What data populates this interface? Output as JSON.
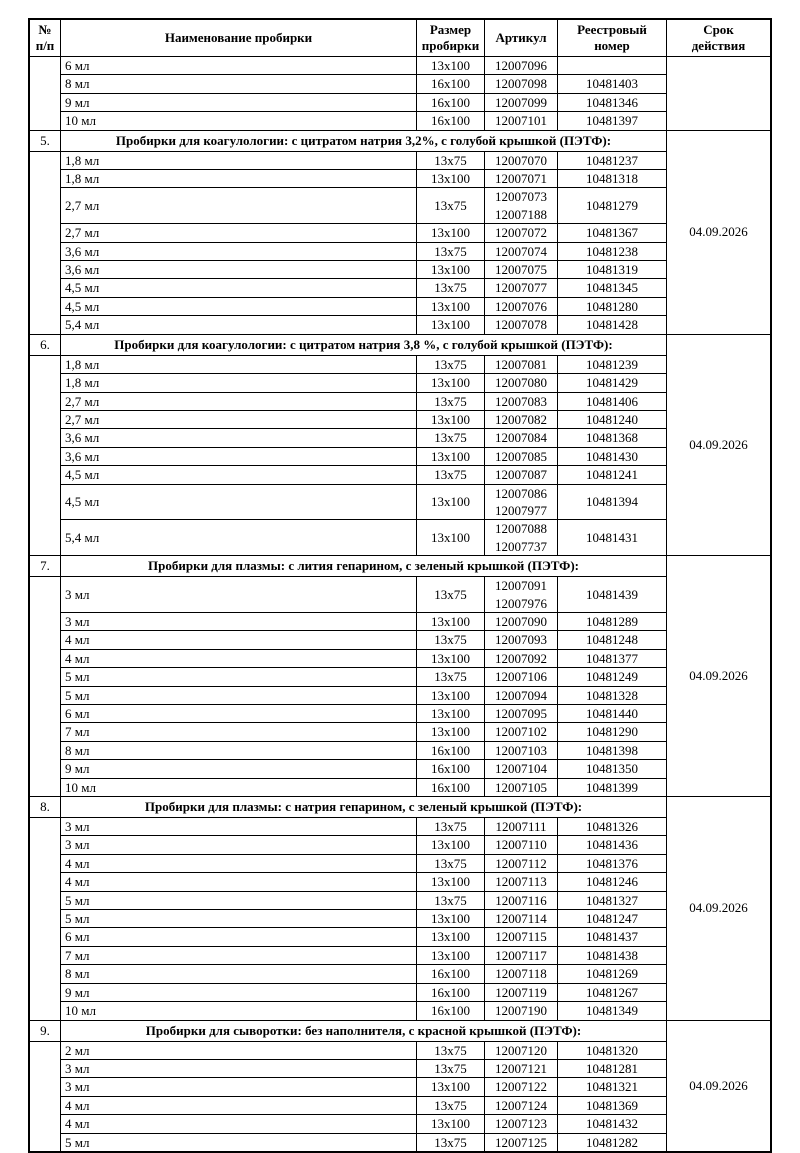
{
  "page": {
    "background": "#ffffff",
    "text_color": "#000000",
    "border_color": "#000000"
  },
  "table": {
    "header": {
      "num": "№\nп/п",
      "name": "Наименование пробирки",
      "size": "Размер\nпробирки",
      "article": "Артикул",
      "registry": "Реестровый\nномер",
      "validity": "Срок\nдействия"
    },
    "continuation": {
      "validity": "",
      "rows": [
        {
          "name": "6 мл",
          "size": "13x100",
          "article": "12007096",
          "registry": ""
        },
        {
          "name": "8 мл",
          "size": "16x100",
          "article": "12007098",
          "registry": "10481403"
        },
        {
          "name": "9 мл",
          "size": "16x100",
          "article": "12007099",
          "registry": "10481346"
        },
        {
          "name": "10 мл",
          "size": "16x100",
          "article": "12007101",
          "registry": "10481397"
        }
      ]
    },
    "sections": [
      {
        "number": "5.",
        "title": "Пробирки для коагулологии: с цитратом натрия 3,2%, с голубой крышкой (ПЭТФ):",
        "validity": "04.09.2026",
        "rows": [
          {
            "name": "1,8 мл",
            "size": "13x75",
            "article": "12007070",
            "registry": "10481237"
          },
          {
            "name": "1,8 мл",
            "size": "13x100",
            "article": "12007071",
            "registry": "10481318"
          },
          {
            "name": "2,7 мл",
            "size": "13x75",
            "article": "12007073\n12007188",
            "registry": "10481279"
          },
          {
            "name": "2,7 мл",
            "size": "13x100",
            "article": "12007072",
            "registry": "10481367"
          },
          {
            "name": "3,6 мл",
            "size": "13x75",
            "article": "12007074",
            "registry": "10481238"
          },
          {
            "name": "3,6 мл",
            "size": "13x100",
            "article": "12007075",
            "registry": "10481319"
          },
          {
            "name": "4,5 мл",
            "size": "13x75",
            "article": "12007077",
            "registry": "10481345"
          },
          {
            "name": "4,5 мл",
            "size": "13x100",
            "article": "12007076",
            "registry": "10481280"
          },
          {
            "name": "5,4 мл",
            "size": "13x100",
            "article": "12007078",
            "registry": "10481428"
          }
        ]
      },
      {
        "number": "6.",
        "title": "Пробирки для коагулологии: с цитратом натрия 3,8 %, с голубой крышкой (ПЭТФ):",
        "validity": "04.09.2026",
        "rows": [
          {
            "name": "1,8 мл",
            "size": "13x75",
            "article": "12007081",
            "registry": "10481239"
          },
          {
            "name": "1,8 мл",
            "size": "13x100",
            "article": "12007080",
            "registry": "10481429"
          },
          {
            "name": "2,7 мл",
            "size": "13x75",
            "article": "12007083",
            "registry": "10481406"
          },
          {
            "name": "2,7 мл",
            "size": "13x100",
            "article": "12007082",
            "registry": "10481240"
          },
          {
            "name": "3,6 мл",
            "size": "13x75",
            "article": "12007084",
            "registry": "10481368"
          },
          {
            "name": "3,6 мл",
            "size": "13x100",
            "article": "12007085",
            "registry": "10481430"
          },
          {
            "name": "4,5 мл",
            "size": "13x75",
            "article": "12007087",
            "registry": "10481241"
          },
          {
            "name": "4,5 мл",
            "size": "13x100",
            "article": "12007086\n12007977",
            "registry": "10481394"
          },
          {
            "name": "5,4 мл",
            "size": "13x100",
            "article": "12007088\n12007737",
            "registry": "10481431"
          }
        ]
      },
      {
        "number": "7.",
        "title": "Пробирки для плазмы: с лития гепарином, с зеленый крышкой (ПЭТФ):",
        "validity": "04.09.2026",
        "rows": [
          {
            "name": "3 мл",
            "size": "13x75",
            "article": "12007091\n12007976",
            "registry": "10481439"
          },
          {
            "name": "3 мл",
            "size": "13x100",
            "article": "12007090",
            "registry": "10481289"
          },
          {
            "name": "4 мл",
            "size": "13x75",
            "article": "12007093",
            "registry": "10481248"
          },
          {
            "name": "4 мл",
            "size": "13x100",
            "article": "12007092",
            "registry": "10481377"
          },
          {
            "name": "5 мл",
            "size": "13x75",
            "article": "12007106",
            "registry": "10481249"
          },
          {
            "name": "5 мл",
            "size": "13x100",
            "article": "12007094",
            "registry": "10481328"
          },
          {
            "name": "6 мл",
            "size": "13x100",
            "article": "12007095",
            "registry": "10481440"
          },
          {
            "name": "7 мл",
            "size": "13x100",
            "article": "12007102",
            "registry": "10481290"
          },
          {
            "name": "8 мл",
            "size": "16x100",
            "article": "12007103",
            "registry": "10481398"
          },
          {
            "name": "9 мл",
            "size": "16x100",
            "article": "12007104",
            "registry": "10481350"
          },
          {
            "name": "10 мл",
            "size": "16x100",
            "article": "12007105",
            "registry": "10481399"
          }
        ]
      },
      {
        "number": "8.",
        "title": "Пробирки для плазмы: с натрия гепарином, с зеленый крышкой (ПЭТФ):",
        "validity": "04.09.2026",
        "rows": [
          {
            "name": "3 мл",
            "size": "13x75",
            "article": "12007111",
            "registry": "10481326"
          },
          {
            "name": "3 мл",
            "size": "13x100",
            "article": "12007110",
            "registry": "10481436"
          },
          {
            "name": "4 мл",
            "size": "13x75",
            "article": "12007112",
            "registry": "10481376"
          },
          {
            "name": "4 мл",
            "size": "13x100",
            "article": "12007113",
            "registry": "10481246"
          },
          {
            "name": "5 мл",
            "size": "13x75",
            "article": "12007116",
            "registry": "10481327"
          },
          {
            "name": "5 мл",
            "size": "13x100",
            "article": "12007114",
            "registry": "10481247"
          },
          {
            "name": "6 мл",
            "size": "13x100",
            "article": "12007115",
            "registry": "10481437"
          },
          {
            "name": "7 мл",
            "size": "13x100",
            "article": "12007117",
            "registry": "10481438"
          },
          {
            "name": "8 мл",
            "size": "16x100",
            "article": "12007118",
            "registry": "10481269"
          },
          {
            "name": "9 мл",
            "size": "16x100",
            "article": "12007119",
            "registry": "10481267"
          },
          {
            "name": "10 мл",
            "size": "16x100",
            "article": "12007190",
            "registry": "10481349"
          }
        ]
      },
      {
        "number": "9.",
        "title": "Пробирки для сыворотки: без наполнителя, с красной крышкой (ПЭТФ):",
        "validity": "04.09.2026",
        "rows": [
          {
            "name": "2 мл",
            "size": "13x75",
            "article": "12007120",
            "registry": "10481320"
          },
          {
            "name": "3 мл",
            "size": "13x75",
            "article": "12007121",
            "registry": "10481281"
          },
          {
            "name": "3 мл",
            "size": "13x100",
            "article": "12007122",
            "registry": "10481321"
          },
          {
            "name": "4 мл",
            "size": "13x75",
            "article": "12007124",
            "registry": "10481369"
          },
          {
            "name": "4 мл",
            "size": "13x100",
            "article": "12007123",
            "registry": "10481432"
          },
          {
            "name": "5 мл",
            "size": "13x75",
            "article": "12007125",
            "registry": "10481282"
          }
        ]
      }
    ]
  }
}
